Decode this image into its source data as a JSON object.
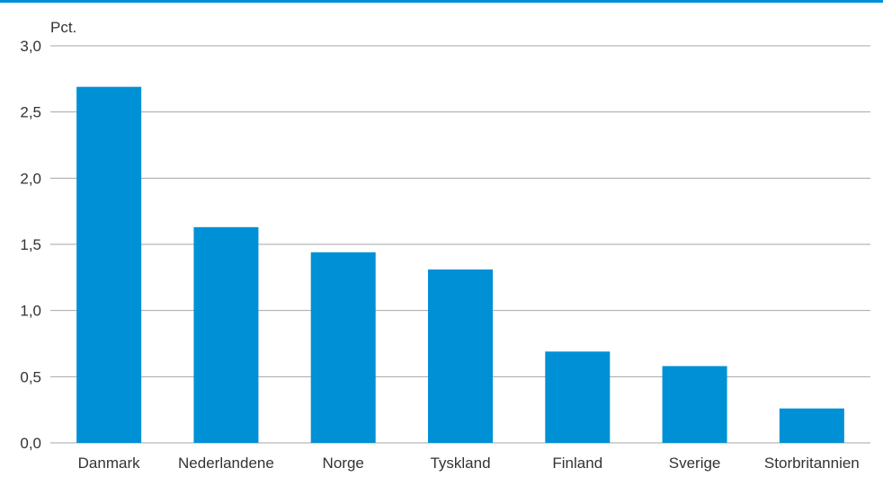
{
  "chart_data": {
    "type": "bar",
    "title": "",
    "xlabel": "",
    "ylabel": "Pct.",
    "categories": [
      "Danmark",
      "Nederlandene",
      "Norge",
      "Tyskland",
      "Finland",
      "Sverige",
      "Storbritannien"
    ],
    "values": [
      2.69,
      1.63,
      1.44,
      1.31,
      0.69,
      0.58,
      0.26
    ],
    "ylim": [
      0,
      3.0
    ],
    "yticks": [
      "0,0",
      "0,5",
      "1,0",
      "1,5",
      "2,0",
      "2,5",
      "3,0"
    ],
    "grid": true,
    "legend": "none"
  },
  "colors": {
    "bar": "#0090d5",
    "top_rule": "#0090d5",
    "grid": "#a6a6a6"
  }
}
